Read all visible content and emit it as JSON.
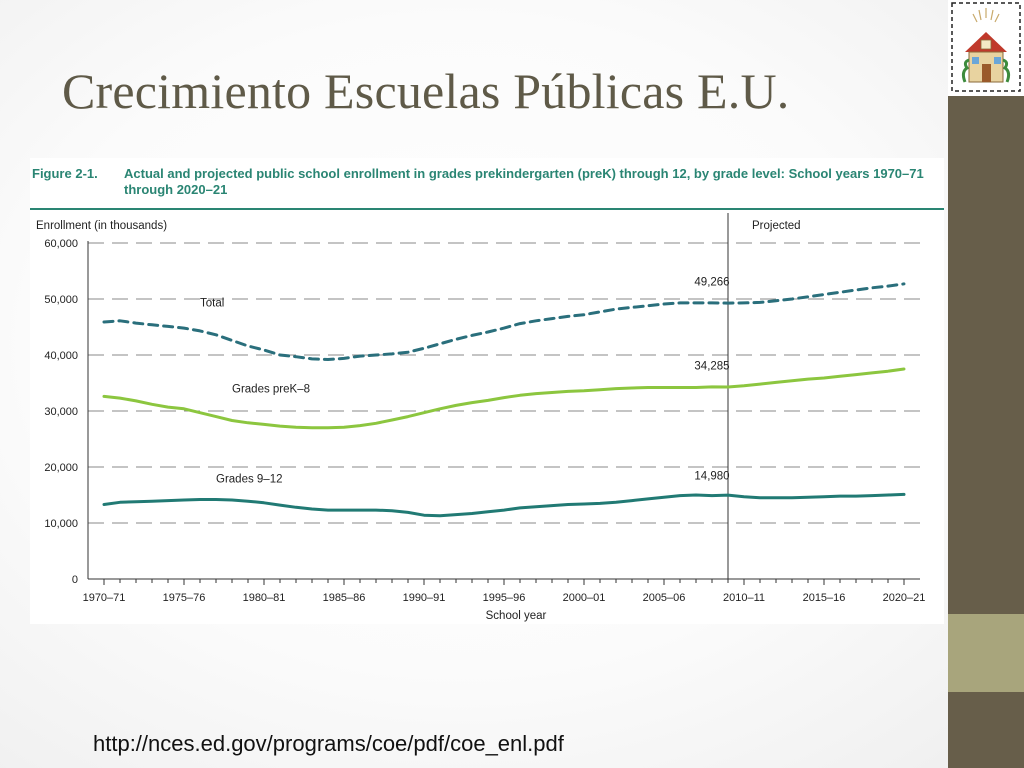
{
  "slide": {
    "title": "Crecimiento Escuelas Públicas E.U.",
    "source_url": "http://nces.ed.gov/programs/coe/pdf/coe_enl.pdf"
  },
  "figure": {
    "number": "Figure 2-1.",
    "caption": "Actual and projected public school enrollment in grades prekindergarten (preK) through 12, by grade level: School years 1970–71 through 2020–21"
  },
  "colors": {
    "title_text": "#5f5a48",
    "figure_accent": "#2a8573",
    "total_line": "#2a6f7c",
    "prek8_line": "#8cc63f",
    "grades912_line": "#217a74",
    "band_dark": "#675e4a",
    "band_light": "#a8a57c"
  },
  "chart_data": {
    "type": "line",
    "title": "Actual and projected public school enrollment in grades prekindergarten (preK) through 12, by grade level: School years 1970–71 through 2020–21",
    "ylabel": "Enrollment (in thousands)",
    "xlabel": "School year",
    "ylim": [
      0,
      60000
    ],
    "y_ticks": [
      "0",
      "10,000",
      "20,000",
      "30,000",
      "40,000",
      "50,000",
      "60,000"
    ],
    "y_tick_values": [
      0,
      10000,
      20000,
      30000,
      40000,
      50000,
      60000
    ],
    "x_ticks": [
      "1970–71",
      "1975–76",
      "1980–81",
      "1985–86",
      "1990–91",
      "1995–96",
      "2000–01",
      "2005–06",
      "2010–11",
      "2015–16",
      "2020–21"
    ],
    "x_tick_years": [
      1970,
      1975,
      1980,
      1985,
      1990,
      1995,
      2000,
      2005,
      2010,
      2015,
      2020
    ],
    "x_range": [
      1969,
      2021
    ],
    "projection_start": 2009,
    "projection_label": "Projected",
    "grid": true,
    "x": [
      1970,
      1971,
      1972,
      1973,
      1974,
      1975,
      1976,
      1977,
      1978,
      1979,
      1980,
      1981,
      1982,
      1983,
      1984,
      1985,
      1986,
      1987,
      1988,
      1989,
      1990,
      1991,
      1992,
      1993,
      1994,
      1995,
      1996,
      1997,
      1998,
      1999,
      2000,
      2001,
      2002,
      2003,
      2004,
      2005,
      2006,
      2007,
      2008,
      2009,
      2010,
      2011,
      2012,
      2013,
      2014,
      2015,
      2016,
      2017,
      2018,
      2019,
      2020
    ],
    "series": [
      {
        "name": "Total",
        "style": "dashed",
        "values": [
          45900,
          46100,
          45700,
          45400,
          45100,
          44800,
          44300,
          43600,
          42600,
          41600,
          40900,
          40000,
          39700,
          39300,
          39200,
          39400,
          39800,
          40000,
          40200,
          40500,
          41200,
          42000,
          42800,
          43500,
          44100,
          44800,
          45600,
          46100,
          46500,
          46900,
          47200,
          47700,
          48200,
          48500,
          48800,
          49100,
          49300,
          49300,
          49300,
          49266,
          49300,
          49400,
          49700,
          50000,
          50400,
          50800,
          51200,
          51600,
          52000,
          52300,
          52700
        ],
        "label_text": "49,266",
        "label_x": 2008
      },
      {
        "name": "Grades preK–8",
        "style": "solid",
        "values": [
          32600,
          32300,
          31800,
          31200,
          30700,
          30400,
          29700,
          29000,
          28300,
          27900,
          27600,
          27300,
          27100,
          27000,
          27000,
          27100,
          27400,
          27800,
          28400,
          29000,
          29700,
          30400,
          31000,
          31500,
          31900,
          32400,
          32800,
          33100,
          33300,
          33500,
          33600,
          33800,
          34000,
          34100,
          34200,
          34200,
          34200,
          34200,
          34300,
          34285,
          34500,
          34800,
          35100,
          35400,
          35700,
          35900,
          36200,
          36500,
          36800,
          37100,
          37500
        ],
        "label_text": "34,285",
        "label_x": 2008
      },
      {
        "name": "Grades 9–12",
        "style": "solid",
        "values": [
          13300,
          13700,
          13800,
          13900,
          14000,
          14100,
          14200,
          14200,
          14100,
          13900,
          13600,
          13200,
          12800,
          12500,
          12300,
          12300,
          12300,
          12300,
          12200,
          11900,
          11400,
          11300,
          11500,
          11700,
          12000,
          12300,
          12700,
          12900,
          13100,
          13300,
          13400,
          13500,
          13700,
          14000,
          14300,
          14600,
          14900,
          15000,
          14900,
          14980,
          14700,
          14500,
          14500,
          14500,
          14600,
          14700,
          14800,
          14800,
          14900,
          15000,
          15100
        ],
        "label_text": "14,980",
        "label_x": 2008
      }
    ]
  }
}
